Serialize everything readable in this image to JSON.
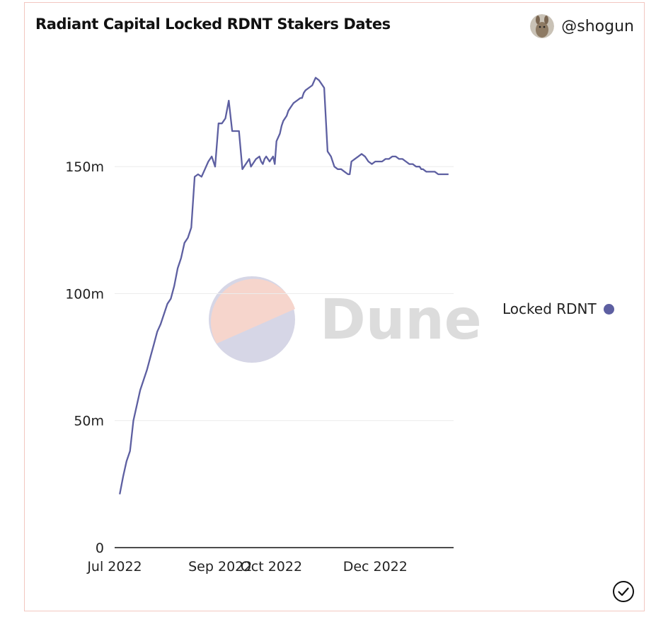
{
  "header": {
    "title": "Radiant Capital Locked RDNT Stakers Dates",
    "author": "@shogun"
  },
  "watermark": {
    "text": "Dune",
    "colors": {
      "top": "#f6d5cc",
      "bottom": "#d6d6e6",
      "text": "#dcdcdc"
    }
  },
  "colors": {
    "series": "#5d5fa1",
    "grid": "#ececec",
    "axis": "#111111"
  },
  "icons": {
    "avatar": "kangaroo-avatar-icon",
    "check": "check-circle-icon"
  },
  "chart_data": {
    "type": "line",
    "title": "Radiant Capital Locked RDNT Stakers Dates",
    "xlabel": "",
    "ylabel": "",
    "ylim": [
      0,
      205
    ],
    "y_ticks": [
      0,
      50,
      100,
      150
    ],
    "y_tick_labels": [
      "0",
      "50m",
      "100m",
      "150m"
    ],
    "x_ticks": [
      "2022-07-01",
      "2022-09-01",
      "2022-10-01",
      "2022-12-01"
    ],
    "x_tick_labels": [
      "Jul 2022",
      "Sep 2022",
      "Oct 2022",
      "Dec 2022"
    ],
    "y_unit": "million RDNT",
    "grid": true,
    "legend_position": "right",
    "series": [
      {
        "name": "Locked RDNT",
        "color": "#5d5fa1",
        "x": [
          "2022-07-04",
          "2022-07-06",
          "2022-07-08",
          "2022-07-10",
          "2022-07-12",
          "2022-07-14",
          "2022-07-16",
          "2022-07-18",
          "2022-07-20",
          "2022-07-22",
          "2022-07-24",
          "2022-07-26",
          "2022-07-28",
          "2022-07-30",
          "2022-08-01",
          "2022-08-03",
          "2022-08-05",
          "2022-08-07",
          "2022-08-09",
          "2022-08-11",
          "2022-08-13",
          "2022-08-15",
          "2022-08-17",
          "2022-08-19",
          "2022-08-21",
          "2022-08-23",
          "2022-08-25",
          "2022-08-27",
          "2022-08-29",
          "2022-08-31",
          "2022-09-02",
          "2022-09-04",
          "2022-09-06",
          "2022-09-08",
          "2022-09-10",
          "2022-09-12",
          "2022-09-14",
          "2022-09-16",
          "2022-09-18",
          "2022-09-19",
          "2022-09-20",
          "2022-09-22",
          "2022-09-24",
          "2022-09-25",
          "2022-09-26",
          "2022-09-27",
          "2022-09-28",
          "2022-09-30",
          "2022-10-01",
          "2022-10-02",
          "2022-10-03",
          "2022-10-04",
          "2022-10-06",
          "2022-10-07",
          "2022-10-08",
          "2022-10-10",
          "2022-10-11",
          "2022-10-12",
          "2022-10-13",
          "2022-10-14",
          "2022-10-16",
          "2022-10-18",
          "2022-10-19",
          "2022-10-20",
          "2022-10-21",
          "2022-10-23",
          "2022-10-25",
          "2022-10-27",
          "2022-10-29",
          "2022-11-01",
          "2022-11-03",
          "2022-11-05",
          "2022-11-07",
          "2022-11-09",
          "2022-11-11",
          "2022-11-13",
          "2022-11-15",
          "2022-11-16",
          "2022-11-17",
          "2022-11-19",
          "2022-11-21",
          "2022-11-23",
          "2022-11-25",
          "2022-11-27",
          "2022-11-29",
          "2022-12-01",
          "2022-12-03",
          "2022-12-05",
          "2022-12-07",
          "2022-12-09",
          "2022-12-11",
          "2022-12-13",
          "2022-12-15",
          "2022-12-17",
          "2022-12-19",
          "2022-12-21",
          "2022-12-23",
          "2022-12-25",
          "2022-12-27",
          "2022-12-28",
          "2022-12-29",
          "2022-12-31",
          "2023-01-02",
          "2023-01-04",
          "2023-01-05",
          "2023-01-07",
          "2023-01-09",
          "2023-01-11",
          "2023-01-13"
        ],
        "values": [
          21,
          28,
          34,
          38,
          50,
          56,
          62,
          66,
          70,
          75,
          80,
          85,
          88,
          92,
          96,
          98,
          103,
          110,
          114,
          120,
          122,
          126,
          146,
          147,
          146,
          149,
          152,
          154,
          150,
          167,
          167,
          169,
          176,
          164,
          164,
          164,
          149,
          151,
          153,
          150,
          151,
          153,
          154,
          152,
          151,
          153,
          154,
          152,
          153,
          154,
          151,
          160,
          163,
          166,
          168,
          170,
          172,
          173,
          174,
          175,
          176,
          177,
          177,
          179,
          180,
          181,
          182,
          185,
          184,
          181,
          156,
          154,
          150,
          149,
          149,
          148,
          147,
          147,
          152,
          153,
          154,
          155,
          154,
          152,
          151,
          152,
          152,
          152,
          153,
          153,
          154,
          154,
          153,
          153,
          152,
          151,
          151,
          150,
          150,
          149,
          149,
          148,
          148,
          148,
          148,
          147,
          147,
          147,
          147
        ]
      }
    ]
  }
}
